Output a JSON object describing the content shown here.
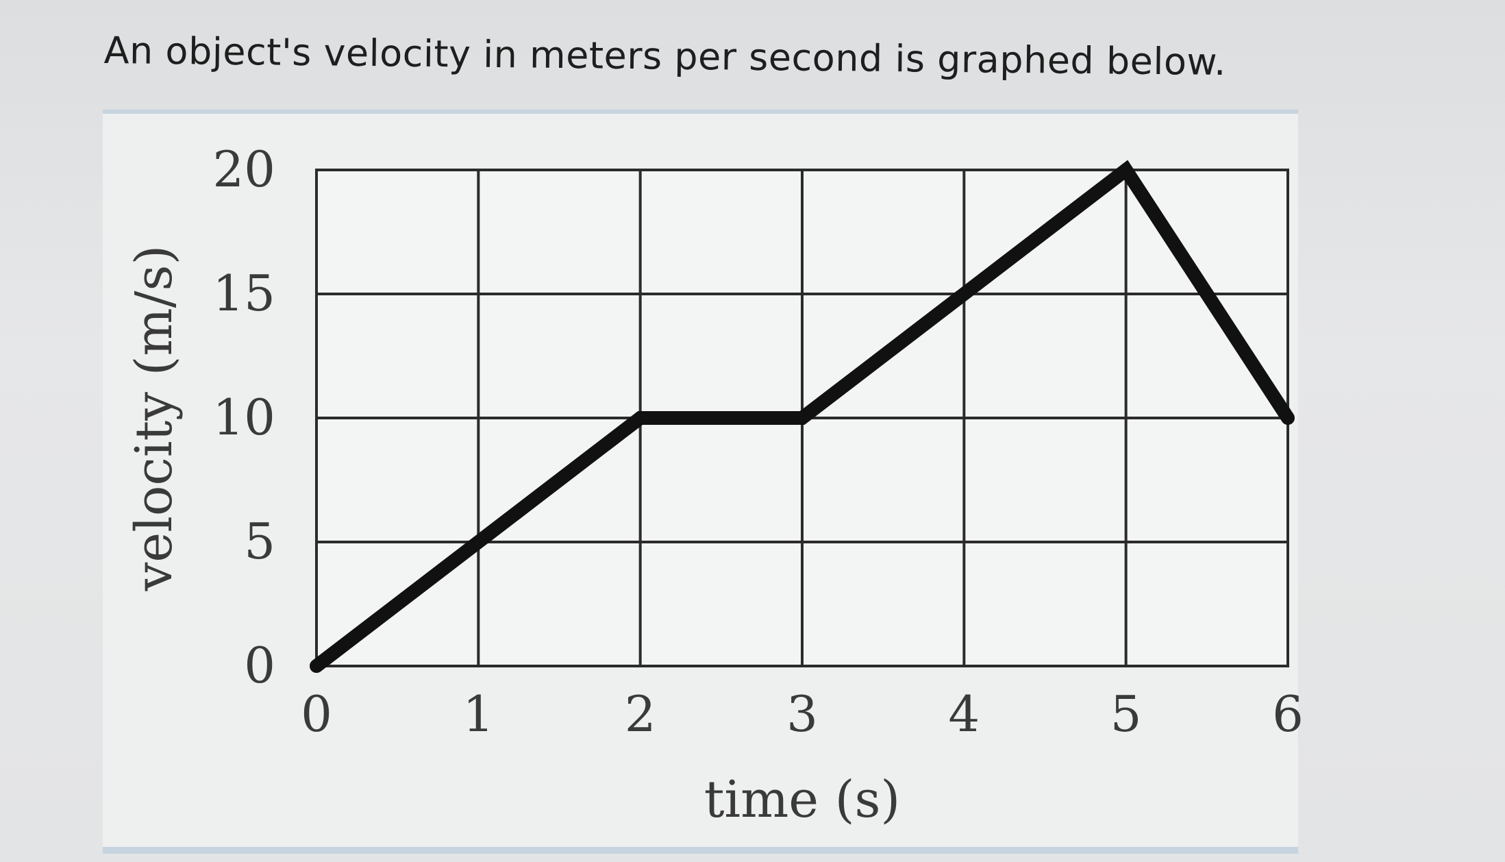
{
  "question": {
    "text": "An object's velocity in meters per second is graphed below."
  },
  "chart_data": {
    "type": "line",
    "title": "",
    "xlabel": "time (s)",
    "ylabel": "velocity (m/s)",
    "xlim": [
      0,
      6
    ],
    "ylim": [
      0,
      20
    ],
    "x_ticks": [
      "0",
      "1",
      "2",
      "3",
      "4",
      "5",
      "6"
    ],
    "y_ticks": [
      "0",
      "5",
      "10",
      "15",
      "20"
    ],
    "grid": true,
    "series": [
      {
        "x": [
          0,
          2,
          3,
          5,
          6
        ],
        "y": [
          0,
          10,
          10,
          20,
          10
        ],
        "color": "#111111"
      }
    ]
  }
}
